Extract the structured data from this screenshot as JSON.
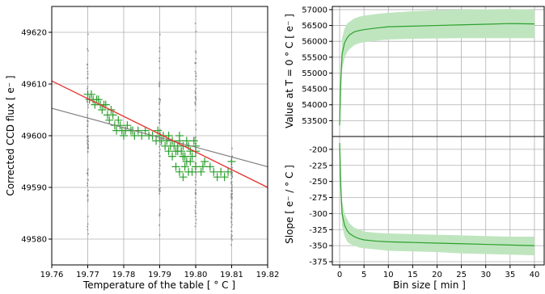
{
  "chart_data": [
    {
      "type": "scatter",
      "xlabel": "Temperature of the table [$^\\circ C$]",
      "xlabel_display": "Temperature of the table [ ° C ]",
      "ylabel": "Corrected CCD flux [$e^-$]",
      "ylabel_display": "Corrected CCD flux [ e⁻ ]",
      "xlim": [
        19.76,
        19.82
      ],
      "ylim": [
        49575,
        49625
      ],
      "x_ticks": [
        "19.76",
        "19.77",
        "19.78",
        "19.79",
        "19.80",
        "19.81",
        "19.82"
      ],
      "y_ticks": [
        "49580",
        "49590",
        "49600",
        "49610",
        "49620"
      ],
      "grid": true,
      "series": [
        {
          "style": "gray-dots",
          "color": "#808080",
          "x_columns": [
            19.77,
            19.79,
            19.8,
            19.81
          ],
          "column_ranges": [
            [
              49578,
              49622
            ],
            [
              49577,
              49622
            ],
            [
              49574,
              49625
            ],
            [
              49577,
              49600
            ]
          ]
        },
        {
          "style": "green-plus",
          "color": "#2ca02c",
          "points": [
            [
              19.77,
              49608
            ],
            [
              19.7705,
              49607
            ],
            [
              19.771,
              49608
            ],
            [
              19.7715,
              49607
            ],
            [
              19.772,
              49606
            ],
            [
              19.7725,
              49607
            ],
            [
              19.773,
              49607
            ],
            [
              19.7735,
              49606
            ],
            [
              19.774,
              49605
            ],
            [
              19.7745,
              49606
            ],
            [
              19.775,
              49606
            ],
            [
              19.7755,
              49604
            ],
            [
              19.776,
              49603
            ],
            [
              19.7765,
              49605
            ],
            [
              19.777,
              49604
            ],
            [
              19.7775,
              49602
            ],
            [
              19.778,
              49601
            ],
            [
              19.7785,
              49603
            ],
            [
              19.779,
              49602
            ],
            [
              19.7795,
              49601
            ],
            [
              19.78,
              49600
            ],
            [
              19.7805,
              49601
            ],
            [
              19.781,
              49602
            ],
            [
              19.782,
              49601
            ],
            [
              19.7825,
              49601
            ],
            [
              19.783,
              49600
            ],
            [
              19.784,
              49601
            ],
            [
              19.785,
              49600
            ],
            [
              19.786,
              49601
            ],
            [
              19.787,
              49600
            ],
            [
              19.788,
              49600
            ],
            [
              19.789,
              49599
            ],
            [
              19.7895,
              49601
            ],
            [
              19.79,
              49600
            ],
            [
              19.7905,
              49599
            ],
            [
              19.791,
              49600
            ],
            [
              19.7915,
              49598
            ],
            [
              19.792,
              49599
            ],
            [
              19.7925,
              49600
            ],
            [
              19.793,
              49598
            ],
            [
              19.7935,
              49599
            ],
            [
              19.794,
              49598
            ],
            [
              19.7945,
              49597
            ],
            [
              19.795,
              49598
            ],
            [
              19.7955,
              49599
            ],
            [
              19.796,
              49597
            ],
            [
              19.7965,
              49598
            ],
            [
              19.797,
              49596
            ],
            [
              19.7975,
              49599
            ],
            [
              19.798,
              49598
            ],
            [
              19.7985,
              49597
            ],
            [
              19.799,
              49596
            ],
            [
              19.7995,
              49599
            ],
            [
              19.8,
              49598
            ],
            [
              19.8,
              49597
            ],
            [
              19.7925,
              49597
            ],
            [
              19.7935,
              49596
            ],
            [
              19.795,
              49597
            ],
            [
              19.7955,
              49600
            ],
            [
              19.7965,
              49596
            ],
            [
              19.7945,
              49594
            ],
            [
              19.7955,
              49593
            ],
            [
              19.7965,
              49592
            ],
            [
              19.797,
              49594
            ],
            [
              19.798,
              49593
            ],
            [
              19.7985,
              49595
            ],
            [
              19.799,
              49593
            ],
            [
              19.8,
              49594
            ],
            [
              19.8015,
              49593
            ],
            [
              19.802,
              49594
            ],
            [
              19.8025,
              49595
            ],
            [
              19.804,
              49594
            ],
            [
              19.805,
              49593
            ],
            [
              19.806,
              49592
            ],
            [
              19.807,
              49593
            ],
            [
              19.808,
              49592
            ],
            [
              19.809,
              49593
            ],
            [
              19.81,
              49595
            ],
            [
              19.7965,
              49596
            ],
            [
              19.7975,
              49595
            ]
          ]
        },
        {
          "style": "red-fit-line",
          "color": "#e8312f",
          "y_at_xmin": 49610.6,
          "y_at_xmax": 49590.0
        },
        {
          "style": "gray-fit-line",
          "color": "#808080",
          "y_at_xmin": 49605.3,
          "y_at_xmax": 49594.0
        }
      ]
    },
    {
      "type": "line",
      "xlabel": "",
      "ylabel": "Value at $T=0^\\circ C$ [$e^-$]",
      "ylabel_display": "Value at T = 0 ° C [ e⁻ ]",
      "xlim": [
        -1.5,
        42
      ],
      "ylim": [
        53000,
        57100
      ],
      "y_ticks": [
        "53500",
        "54000",
        "54500",
        "55000",
        "55500",
        "56000",
        "56500",
        "57000"
      ],
      "grid": true,
      "color": "#2ca02c",
      "band_color": "#bfe5bf",
      "x": [
        0,
        0.25,
        0.5,
        1,
        1.5,
        2,
        3,
        4,
        5,
        7.5,
        10,
        15,
        20,
        25,
        30,
        35,
        40
      ],
      "mean": [
        53350,
        54800,
        55600,
        55950,
        56100,
        56200,
        56300,
        56340,
        56370,
        56420,
        56460,
        56480,
        56500,
        56520,
        56540,
        56560,
        56550
      ],
      "upper": [
        53600,
        55200,
        56100,
        56400,
        56550,
        56620,
        56720,
        56780,
        56810,
        56860,
        56900,
        56950,
        56980,
        57000,
        57010,
        57020,
        57000
      ],
      "lower": [
        53100,
        54400,
        55100,
        55450,
        55650,
        55750,
        55880,
        55940,
        55970,
        56020,
        56060,
        56080,
        56090,
        56100,
        56100,
        56100,
        56100
      ]
    },
    {
      "type": "line",
      "xlabel": "Bin size [$min$]",
      "xlabel_display": "Bin size [ min ]",
      "ylabel": "Slope [$e^-/^\\circ C$]",
      "ylabel_display": "Slope [ e⁻ / ° C ]",
      "xlim": [
        -1.5,
        42
      ],
      "ylim": [
        -380,
        -180
      ],
      "x_ticks": [
        "0",
        "5",
        "10",
        "15",
        "20",
        "25",
        "30",
        "35",
        "40"
      ],
      "y_ticks": [
        "-200",
        "-225",
        "-250",
        "-275",
        "-300",
        "-325",
        "-350",
        "-375"
      ],
      "grid": true,
      "color": "#2ca02c",
      "band_color": "#bfe5bf",
      "x": [
        0,
        0.25,
        0.5,
        1,
        1.5,
        2,
        3,
        4,
        5,
        7.5,
        10,
        15,
        20,
        25,
        30,
        35,
        40
      ],
      "mean": [
        -190,
        -260,
        -300,
        -318,
        -326,
        -331,
        -336,
        -339,
        -341,
        -343,
        -344,
        -345,
        -346,
        -347,
        -348,
        -349,
        -350
      ],
      "upper": [
        -182,
        -240,
        -280,
        -300,
        -308,
        -315,
        -322,
        -325,
        -328,
        -330,
        -331,
        -332,
        -333,
        -334,
        -335,
        -336,
        -336
      ],
      "lower": [
        -198,
        -280,
        -320,
        -335,
        -343,
        -347,
        -350,
        -353,
        -354,
        -356,
        -358,
        -359,
        -360,
        -362,
        -363,
        -364,
        -365
      ]
    }
  ]
}
